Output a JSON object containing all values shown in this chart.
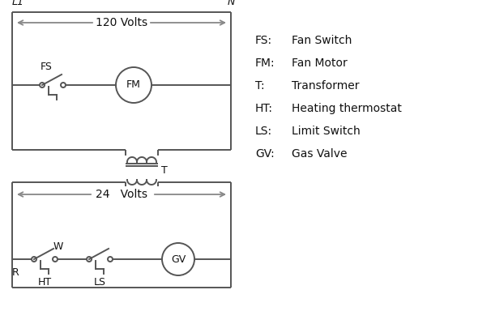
{
  "background_color": "#ffffff",
  "line_color": "#555555",
  "arrow_color": "#888888",
  "text_color": "#111111",
  "legend_items": [
    [
      "FS:",
      "Fan Switch"
    ],
    [
      "FM:",
      "Fan Motor"
    ],
    [
      "T:",
      "Transformer"
    ],
    [
      "HT:",
      "Heating thermostat"
    ],
    [
      "LS:",
      "Limit Switch"
    ],
    [
      "GV:",
      "Gas Valve"
    ]
  ],
  "label_L1": "L1",
  "label_N": "N",
  "label_120V": "120 Volts",
  "label_24V": "24   Volts",
  "label_T": "T",
  "label_FS": "FS",
  "label_FM": "FM",
  "label_R": "R",
  "label_W": "W",
  "label_HT": "HT",
  "label_LS": "LS",
  "label_GV": "GV"
}
